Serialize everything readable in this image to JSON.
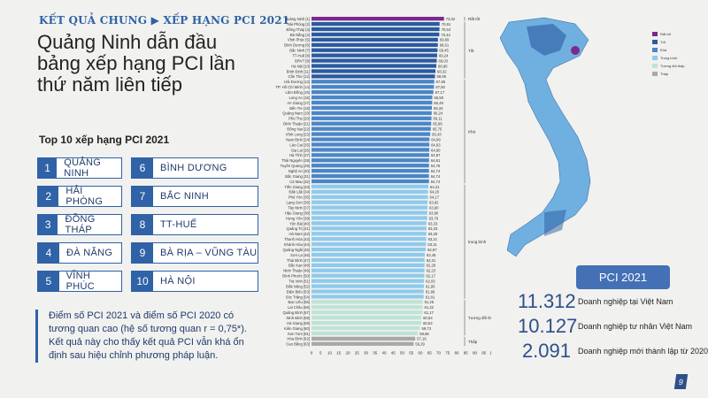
{
  "header": {
    "kicker": "KẾT QUẢ CHUNG ▶ XẾP HẠNG PCI 2021",
    "title": "Quảng Ninh dẫn đầu bảng xếp hạng PCI lần thứ năm liên tiếp"
  },
  "top10": {
    "heading": "Top 10 xếp hạng PCI 2021",
    "items": [
      {
        "rank": "1",
        "name": "QUẢNG NINH"
      },
      {
        "rank": "2",
        "name": "HẢI PHÒNG"
      },
      {
        "rank": "3",
        "name": "ĐỒNG THÁP"
      },
      {
        "rank": "4",
        "name": "ĐÀ NẴNG"
      },
      {
        "rank": "5",
        "name": "VĨNH PHÚC"
      },
      {
        "rank": "6",
        "name": "BÌNH DƯƠNG"
      },
      {
        "rank": "7",
        "name": "BẮC NINH"
      },
      {
        "rank": "8",
        "name": "TT-HUẾ"
      },
      {
        "rank": "9",
        "name": "BÀ RỊA – VŨNG TÀU"
      },
      {
        "rank": "10",
        "name": "HÀ NỘI"
      }
    ]
  },
  "note": "Điểm số PCI 2021 và điểm số PCI 2020 có tương quan cao (hệ số tương quan r = 0,75*). Kết quả này cho thấy kết quả PCI vẫn khá ổn định sau hiệu chỉnh phương pháp luận.",
  "chart_data": {
    "type": "bar",
    "orientation": "horizontal",
    "xlim": [
      0,
      100
    ],
    "xticks": [
      0,
      5,
      10,
      15,
      20,
      25,
      30,
      35,
      40,
      45,
      50,
      55,
      60,
      65,
      70,
      75,
      80,
      85,
      90,
      95,
      100
    ],
    "groups": [
      {
        "name": "Rất tốt",
        "from": 1,
        "to": 1,
        "color": "#7b2a8e"
      },
      {
        "name": "Tốt",
        "from": 2,
        "to": 12,
        "color": "#2b5aa0"
      },
      {
        "name": "Khá",
        "from": 13,
        "to": 32,
        "color": "#4a86c8"
      },
      {
        "name": "trung bình",
        "from": 33,
        "to": 54,
        "color": "#8fcaec"
      },
      {
        "name": "Tương đối thấp",
        "from": 55,
        "to": 61,
        "color": "#bfe3d6"
      },
      {
        "name": "Thấp",
        "from": 62,
        "to": 63,
        "color": "#a9a9a9"
      }
    ],
    "categories": [
      "Quảng Ninh [1]",
      "Hải Phòng [2]",
      "Đồng Tháp [3]",
      "Đà Nẵng [4]",
      "Vĩnh Phúc [5]",
      "Bình Dương [6]",
      "Bắc Ninh [7]",
      "TT-Huế [8]",
      "BRVT [9]",
      "Hà Nội [10]",
      "Bình Định [11]",
      "Cần Thơ [12]",
      "Hải Dương [13]",
      "TP. Hồ Chí Minh [14]",
      "Lâm Đồng [15]",
      "Long An [16]",
      "An Giang [17]",
      "Bến Tre [18]",
      "Quảng Nam [19]",
      "Phú Thọ [20]",
      "Bình Thuận [21]",
      "Đồng Nai [22]",
      "Vĩnh Long [23]",
      "Nam Định [24]",
      "Lào Cai [25]",
      "Gia Lai [26]",
      "Hà Tĩnh [27]",
      "Thái Nguyên [28]",
      "Tuyên Quang [29]",
      "Nghệ An [30]",
      "Bắc Giang [31]",
      "Cà Mau [32]",
      "Tiền Giang [33]",
      "Đắk Lắk [34]",
      "Phú Yên [35]",
      "Lạng Sơn [36]",
      "Tây Ninh [37]",
      "Hậu Giang [38]",
      "Hưng Yên [39]",
      "Yên Bái [40]",
      "Quảng Trị [41]",
      "Hà Nam [42]",
      "Thanh Hóa [43]",
      "Khánh Hòa [44]",
      "Quảng Ngãi [45]",
      "Sơn La [46]",
      "Thái Bình [47]",
      "Bắc Kạn [48]",
      "Ninh Thuận [49]",
      "Bình Phước [50]",
      "Trà Vinh [51]",
      "Đắk Nông [52]",
      "Điện Biên [53]",
      "Sóc Trăng [54]",
      "Bạc Liêu [55]",
      "Lai Châu [56]",
      "Quảng Bình [57]",
      "Ninh Bình [58]",
      "Hà Giang [59]",
      "Kiên Giang [60]",
      "Kon Tum [61]",
      "Hòa Bình [62]",
      "Cao Bằng [63]"
    ],
    "values": [
      "73,02",
      "70,61",
      "70,53",
      "70,42",
      "69,69",
      "69,61",
      "69,45",
      "69,24",
      "69,03",
      "68,80",
      "68,32",
      "68,06",
      "67,65",
      "67,50",
      "67,17",
      "66,58",
      "66,49",
      "66,34",
      "66,24",
      "66,11",
      "65,96",
      "65,75",
      "65,43",
      "64,99",
      "64,93",
      "64,90",
      "64,87",
      "64,81",
      "64,76",
      "64,74",
      "64,74",
      "64,74",
      "64,41",
      "64,20",
      "64,17",
      "63,92",
      "63,90",
      "63,80",
      "63,76",
      "63,33",
      "63,33",
      "63,28",
      "63,21",
      "63,11",
      "62,97",
      "62,45",
      "62,31",
      "62,28",
      "62,23",
      "62,17",
      "62,03",
      "61,95",
      "61,86",
      "61,81",
      "61,25",
      "61,22",
      "61,17",
      "60,53",
      "60,53",
      "59,73",
      "58,66",
      "57,16",
      "56,29"
    ]
  },
  "map_legend": [
    "Rất tốt",
    "Tốt",
    "Khá",
    "Trung bình",
    "Tương đối thấp",
    "Thấp"
  ],
  "pci": {
    "label": "PCI 2021",
    "stats": [
      {
        "value": "11.312",
        "label": "Doanh nghiệp tại Việt Nam"
      },
      {
        "value": "10.127",
        "label": "Doanh nghiệp tư nhân Việt Nam"
      },
      {
        "value": "2.091",
        "label": "Doanh nghiệp mới thành lập từ 2020"
      }
    ]
  },
  "page_number": "9"
}
